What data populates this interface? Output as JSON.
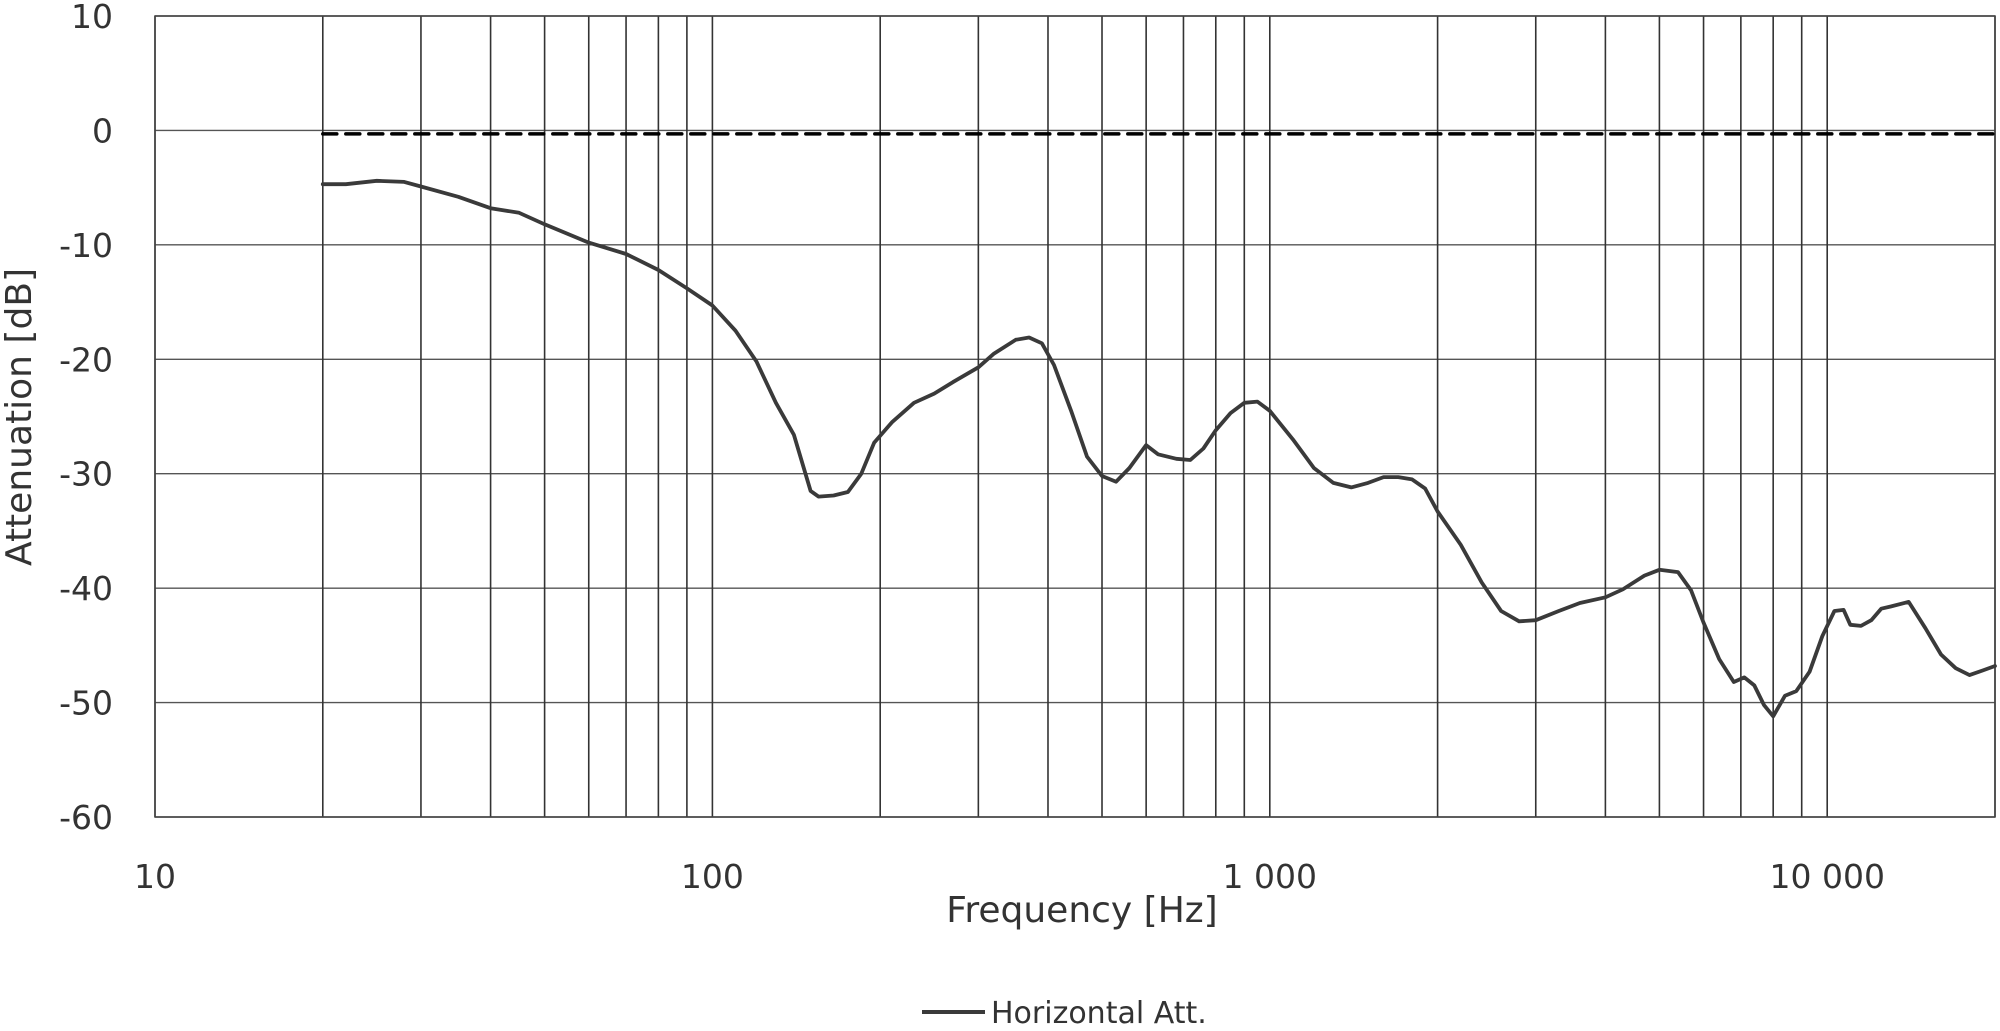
{
  "chart_data": {
    "type": "line",
    "title": "",
    "xlabel": "Frequency [Hz]",
    "ylabel": "Attenuation [dB]",
    "x_scale": "log",
    "xlim": [
      10,
      20000
    ],
    "ylim": [
      -60,
      10
    ],
    "x_ticks": [
      {
        "value": 10,
        "label": "10"
      },
      {
        "value": 100,
        "label": "100"
      },
      {
        "value": 1000,
        "label": "1 000"
      },
      {
        "value": 10000,
        "label": "10 000"
      }
    ],
    "y_ticks": [
      10,
      0,
      -10,
      -20,
      -30,
      -40,
      -50,
      -60
    ],
    "grid": true,
    "legend_position": "bottom-center",
    "series": [
      {
        "name": "Horizontal Att.",
        "color": "#3a3a3a",
        "style": "solid",
        "points": [
          [
            20,
            -4.7
          ],
          [
            22,
            -4.7
          ],
          [
            25,
            -4.4
          ],
          [
            28,
            -4.5
          ],
          [
            30,
            -4.9
          ],
          [
            35,
            -5.8
          ],
          [
            40,
            -6.8
          ],
          [
            45,
            -7.2
          ],
          [
            50,
            -8.2
          ],
          [
            60,
            -9.8
          ],
          [
            70,
            -10.8
          ],
          [
            80,
            -12.2
          ],
          [
            90,
            -13.8
          ],
          [
            100,
            -15.3
          ],
          [
            110,
            -17.5
          ],
          [
            120,
            -20.2
          ],
          [
            130,
            -23.8
          ],
          [
            140,
            -26.6
          ],
          [
            150,
            -31.5
          ],
          [
            155,
            -32.0
          ],
          [
            165,
            -31.9
          ],
          [
            175,
            -31.6
          ],
          [
            185,
            -30.0
          ],
          [
            195,
            -27.3
          ],
          [
            210,
            -25.5
          ],
          [
            230,
            -23.8
          ],
          [
            250,
            -23.0
          ],
          [
            270,
            -22.0
          ],
          [
            300,
            -20.7
          ],
          [
            320,
            -19.5
          ],
          [
            350,
            -18.3
          ],
          [
            370,
            -18.1
          ],
          [
            390,
            -18.6
          ],
          [
            410,
            -20.5
          ],
          [
            440,
            -24.5
          ],
          [
            470,
            -28.5
          ],
          [
            500,
            -30.2
          ],
          [
            530,
            -30.7
          ],
          [
            560,
            -29.5
          ],
          [
            600,
            -27.5
          ],
          [
            630,
            -28.3
          ],
          [
            680,
            -28.7
          ],
          [
            720,
            -28.8
          ],
          [
            760,
            -27.8
          ],
          [
            800,
            -26.2
          ],
          [
            850,
            -24.7
          ],
          [
            900,
            -23.8
          ],
          [
            950,
            -23.7
          ],
          [
            1000,
            -24.5
          ],
          [
            1100,
            -27.0
          ],
          [
            1200,
            -29.5
          ],
          [
            1300,
            -30.8
          ],
          [
            1400,
            -31.2
          ],
          [
            1500,
            -30.8
          ],
          [
            1600,
            -30.3
          ],
          [
            1700,
            -30.3
          ],
          [
            1800,
            -30.5
          ],
          [
            1900,
            -31.3
          ],
          [
            2000,
            -33.3
          ],
          [
            2200,
            -36.2
          ],
          [
            2400,
            -39.5
          ],
          [
            2600,
            -42.0
          ],
          [
            2800,
            -42.9
          ],
          [
            3000,
            -42.8
          ],
          [
            3300,
            -42.0
          ],
          [
            3600,
            -41.3
          ],
          [
            4000,
            -40.8
          ],
          [
            4300,
            -40.1
          ],
          [
            4700,
            -38.9
          ],
          [
            5000,
            -38.4
          ],
          [
            5400,
            -38.6
          ],
          [
            5700,
            -40.2
          ],
          [
            6000,
            -43.0
          ],
          [
            6400,
            -46.2
          ],
          [
            6800,
            -48.2
          ],
          [
            7100,
            -47.8
          ],
          [
            7400,
            -48.5
          ],
          [
            7700,
            -50.2
          ],
          [
            8000,
            -51.2
          ],
          [
            8400,
            -49.4
          ],
          [
            8800,
            -49.0
          ],
          [
            9300,
            -47.3
          ],
          [
            9800,
            -44.2
          ],
          [
            10300,
            -42.0
          ],
          [
            10700,
            -41.9
          ],
          [
            11000,
            -43.2
          ],
          [
            11500,
            -43.3
          ],
          [
            12000,
            -42.8
          ],
          [
            12500,
            -41.8
          ],
          [
            13000,
            -41.6
          ],
          [
            14000,
            -41.2
          ],
          [
            15000,
            -43.5
          ],
          [
            16000,
            -45.8
          ],
          [
            17000,
            -47.0
          ],
          [
            18000,
            -47.6
          ],
          [
            19000,
            -47.2
          ],
          [
            20000,
            -46.8
          ]
        ]
      },
      {
        "name": "",
        "color": "#000000",
        "style": "dashed",
        "points": [
          [
            20,
            -0.3
          ],
          [
            20000,
            -0.3
          ]
        ]
      }
    ]
  }
}
